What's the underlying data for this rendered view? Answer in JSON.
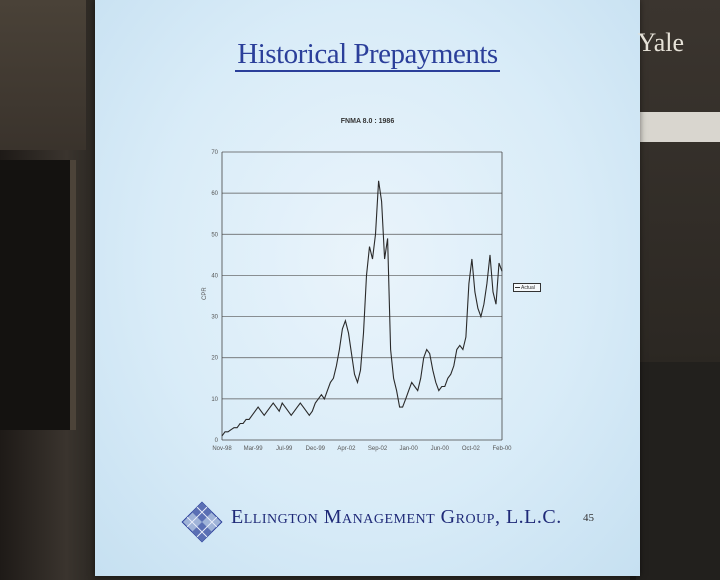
{
  "slide": {
    "title": "Historical Prepayments",
    "company": "Ellington Management Group, L.L.C.",
    "page_number": "45"
  },
  "watermark": "Yale",
  "chart_data": {
    "type": "line",
    "title": "FNMA 8.0 : 1986",
    "ylabel": "CPR",
    "ylim": [
      0,
      70
    ],
    "yticks": [
      "0",
      "10",
      "20",
      "30",
      "40",
      "50",
      "60",
      "70"
    ],
    "xticks": [
      "Nov-98",
      "Mar-99",
      "Jul-99",
      "Dec-99",
      "Apr-02",
      "Sep-02",
      "Jan-00",
      "Jun-00",
      "Oct-02",
      "Feb-00"
    ],
    "legend": "Actual",
    "grid": true,
    "series": [
      {
        "name": "Actual",
        "values": [
          1,
          2,
          2,
          2.5,
          3,
          3,
          4,
          4,
          5,
          5,
          6,
          7,
          8,
          7,
          6,
          7,
          8,
          9,
          8,
          7,
          9,
          8,
          7,
          6,
          7,
          8,
          9,
          8,
          7,
          6,
          7,
          9,
          10,
          11,
          10,
          12,
          14,
          15,
          18,
          22,
          27,
          29,
          26,
          21,
          16,
          14,
          17,
          26,
          40,
          47,
          44,
          50,
          63,
          58,
          44,
          49,
          22,
          15,
          12,
          8,
          8,
          10,
          12,
          14,
          13,
          12,
          15,
          20,
          22,
          21,
          17,
          14,
          12,
          13,
          13,
          15,
          16,
          18,
          22,
          23,
          22,
          25,
          38,
          44,
          36,
          32,
          30,
          33,
          38,
          45,
          36,
          33,
          43,
          41
        ]
      }
    ]
  },
  "colors": {
    "screen": "#d9ecf8",
    "title": "#2b3f9a",
    "company": "#1f2a78",
    "line": "#2a2a2a"
  }
}
